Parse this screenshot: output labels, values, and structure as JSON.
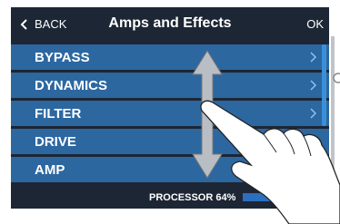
{
  "header": {
    "back": "BACK",
    "title": "Amps and Effects",
    "ok": "OK"
  },
  "list": {
    "items": [
      "BYPASS",
      "DYNAMICS",
      "FILTER",
      "DRIVE",
      "AMP"
    ]
  },
  "status": {
    "label": "PROCESSOR 64%"
  }
}
